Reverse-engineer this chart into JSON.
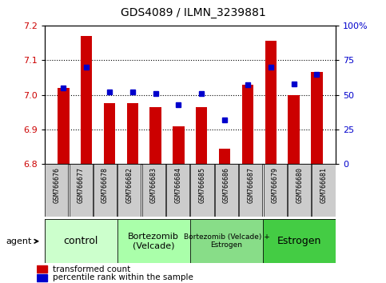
{
  "title": "GDS4089 / ILMN_3239881",
  "samples": [
    "GSM766676",
    "GSM766677",
    "GSM766678",
    "GSM766682",
    "GSM766683",
    "GSM766684",
    "GSM766685",
    "GSM766686",
    "GSM766687",
    "GSM766679",
    "GSM766680",
    "GSM766681"
  ],
  "bar_values": [
    7.02,
    7.17,
    6.975,
    6.975,
    6.965,
    6.91,
    6.965,
    6.845,
    7.03,
    7.155,
    7.0,
    7.065
  ],
  "dot_values": [
    55,
    70,
    52,
    52,
    51,
    43,
    51,
    32,
    57,
    70,
    58,
    65
  ],
  "bar_color": "#cc0000",
  "dot_color": "#0000cc",
  "ylim_left": [
    6.8,
    7.2
  ],
  "ylim_right": [
    0,
    100
  ],
  "yticks_left": [
    6.8,
    6.9,
    7.0,
    7.1,
    7.2
  ],
  "yticks_right": [
    0,
    25,
    50,
    75,
    100
  ],
  "ytick_labels_right": [
    "0",
    "25",
    "50",
    "75",
    "100%"
  ],
  "groups": [
    {
      "label": "control",
      "start": 0,
      "end": 3,
      "color": "#ccffcc",
      "fontsize": 9
    },
    {
      "label": "Bortezomib\n(Velcade)",
      "start": 3,
      "end": 6,
      "color": "#aaffaa",
      "fontsize": 8
    },
    {
      "label": "Bortezomib (Velcade) +\nEstrogen",
      "start": 6,
      "end": 9,
      "color": "#88dd88",
      "fontsize": 6.5
    },
    {
      "label": "Estrogen",
      "start": 9,
      "end": 12,
      "color": "#44cc44",
      "fontsize": 9
    }
  ],
  "legend_red_label": "transformed count",
  "legend_blue_label": "percentile rank within the sample",
  "agent_label": "agent",
  "tick_label_color_left": "#cc0000",
  "tick_label_color_right": "#0000cc",
  "xtick_bg_color": "#cccccc",
  "grid_lines": [
    6.9,
    7.0,
    7.1
  ]
}
